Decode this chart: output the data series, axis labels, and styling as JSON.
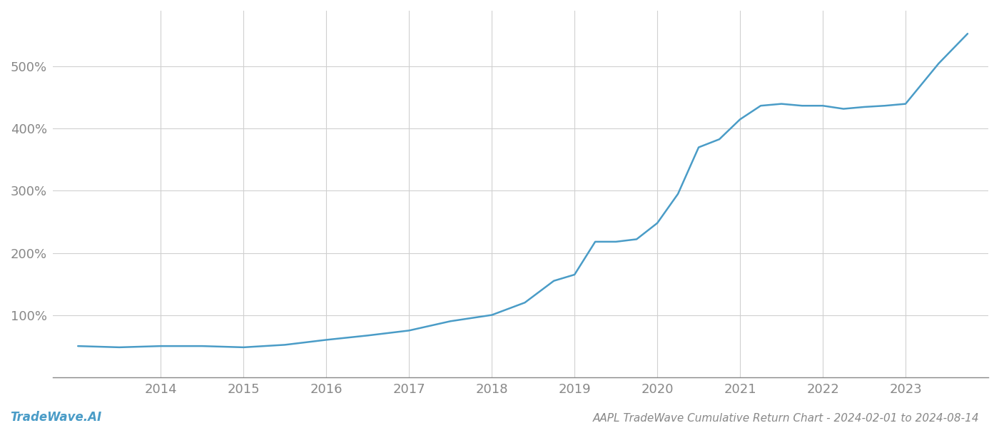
{
  "title": "AAPL TradeWave Cumulative Return Chart - 2024-02-01 to 2024-08-14",
  "watermark": "TradeWave.AI",
  "line_color": "#4a9cc7",
  "background_color": "#ffffff",
  "grid_color": "#d0d0d0",
  "x_tick_labels": [
    "2014",
    "2015",
    "2016",
    "2017",
    "2018",
    "2019",
    "2020",
    "2021",
    "2022",
    "2023"
  ],
  "x_tick_positions": [
    1,
    2,
    3,
    4,
    5,
    6,
    7,
    8,
    9,
    10
  ],
  "x_data": [
    0.0,
    0.5,
    1.0,
    1.5,
    2.0,
    2.5,
    3.0,
    3.5,
    4.0,
    4.5,
    5.0,
    5.4,
    5.75,
    6.0,
    6.25,
    6.5,
    6.75,
    7.0,
    7.25,
    7.5,
    7.75,
    8.0,
    8.25,
    8.5,
    8.75,
    9.0,
    9.25,
    9.5,
    9.75,
    10.0,
    10.4,
    10.75
  ],
  "y_data": [
    50,
    48,
    50,
    50,
    48,
    52,
    60,
    67,
    75,
    90,
    100,
    120,
    155,
    165,
    218,
    218,
    222,
    248,
    295,
    370,
    383,
    415,
    437,
    440,
    437,
    437,
    432,
    435,
    437,
    440,
    505,
    553
  ],
  "ylim": [
    0,
    590
  ],
  "xlim": [
    -0.3,
    11.0
  ],
  "yticks": [
    100,
    200,
    300,
    400,
    500
  ],
  "tick_fontsize": 13,
  "title_fontsize": 11,
  "watermark_fontsize": 12,
  "tick_color": "#888888",
  "axis_color": "#888888",
  "line_width": 1.8
}
